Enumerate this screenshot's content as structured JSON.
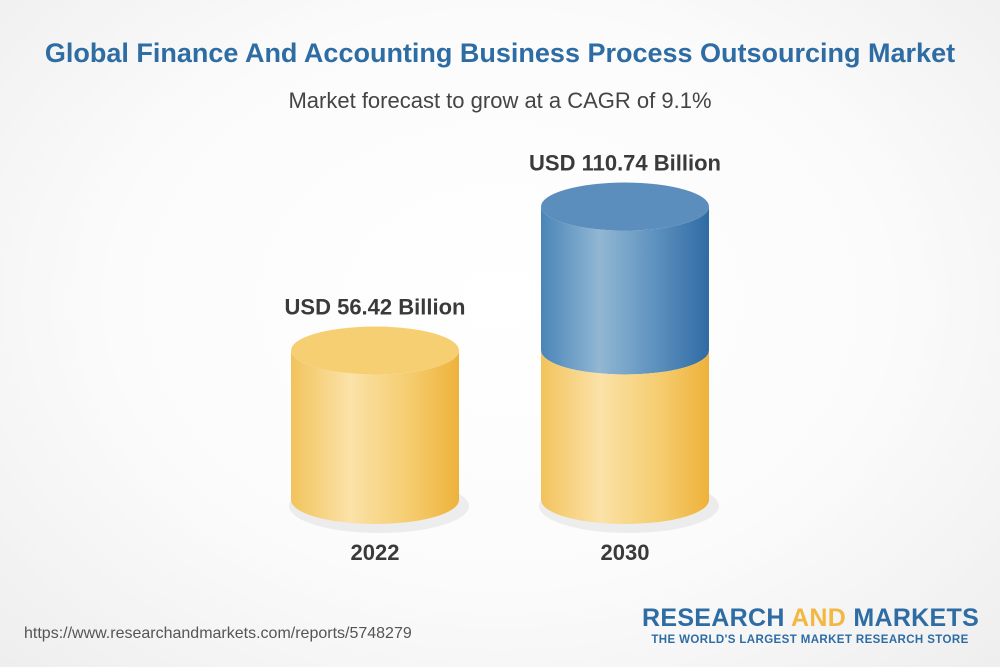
{
  "header": {
    "title": "Global Finance And Accounting Business Process Outsourcing Market",
    "subtitle": "Market forecast to grow at a CAGR of 9.1%"
  },
  "chart_data": {
    "type": "bar",
    "style": "3d-cylinder",
    "title": "Global Finance And Accounting Business Process Outsourcing Market",
    "subtitle": "Market forecast to grow at a CAGR of 9.1%",
    "categories": [
      "2022",
      "2030"
    ],
    "values": [
      56.42,
      110.74
    ],
    "value_labels": [
      "USD 56.42 Billion",
      "USD 110.74 Billion"
    ],
    "unit": "USD Billion",
    "cagr_percent": 9.1,
    "grid": false,
    "legend": "none",
    "colors": {
      "base": "#f2c05a",
      "growth": "#3d7aad"
    }
  },
  "footer": {
    "source_url": "https://www.researchandmarkets.com/reports/5748279",
    "logo_part1": "RESEARCH ",
    "logo_part2": "AND",
    "logo_part3": " MARKETS",
    "tagline": "THE WORLD'S LARGEST MARKET RESEARCH STORE"
  }
}
